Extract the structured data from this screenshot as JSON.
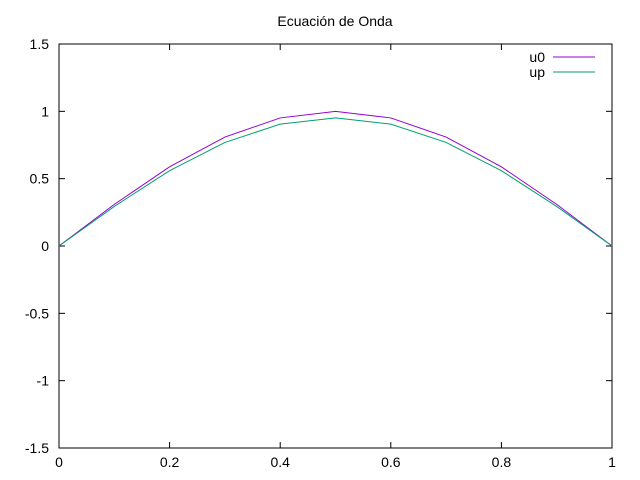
{
  "chart_data": {
    "type": "line",
    "title": "Ecuación de Onda",
    "xlabel": "",
    "ylabel": "",
    "xlim": [
      0,
      1
    ],
    "ylim": [
      -1.5,
      1.5
    ],
    "x_ticks": [
      "0",
      "0.2",
      "0.4",
      "0.6",
      "0.8",
      "1"
    ],
    "y_ticks": [
      "1.5",
      "1",
      "0.5",
      "0",
      "-0.5",
      "-1",
      "-1.5"
    ],
    "x_tick_values": [
      0,
      0.2,
      0.4,
      0.6,
      0.8,
      1
    ],
    "y_tick_values": [
      1.5,
      1,
      0.5,
      0,
      -0.5,
      -1,
      -1.5
    ],
    "legend_position": "top-right",
    "grid": false,
    "x": [
      0,
      0.1,
      0.2,
      0.3,
      0.4,
      0.5,
      0.6,
      0.7,
      0.8,
      0.9,
      1.0
    ],
    "series": [
      {
        "name": "u0",
        "color": "#9400d3",
        "values": [
          0,
          0.309,
          0.588,
          0.809,
          0.951,
          1.0,
          0.951,
          0.809,
          0.588,
          0.309,
          0
        ]
      },
      {
        "name": "up",
        "color": "#009e73",
        "values": [
          0,
          0.294,
          0.559,
          0.769,
          0.905,
          0.951,
          0.905,
          0.769,
          0.559,
          0.294,
          0
        ]
      }
    ]
  }
}
